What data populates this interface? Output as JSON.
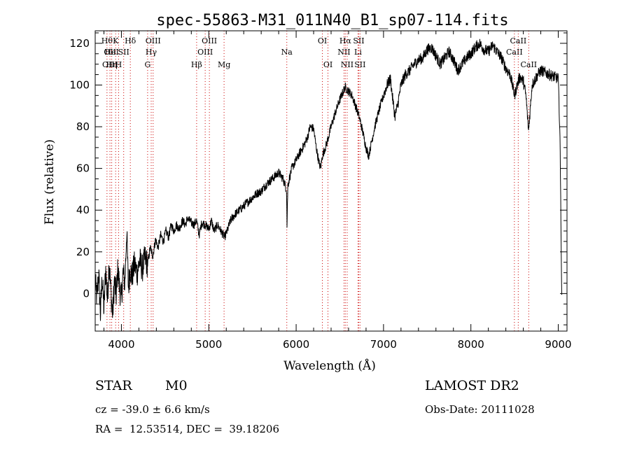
{
  "chart_data": {
    "type": "line",
    "title": "spec-55863-M31_011N40_B1_sp07-114.fits",
    "xlabel": "Wavelength (Å)",
    "ylabel": "Flux (relative)",
    "xlim": [
      3700,
      9100
    ],
    "ylim": [
      -18,
      126
    ],
    "xticks": [
      4000,
      5000,
      6000,
      7000,
      8000,
      9000
    ],
    "yticks": [
      0,
      20,
      40,
      60,
      80,
      100,
      120
    ],
    "grid": false,
    "colors": {
      "spectrum": "#000000",
      "lines": "#cc0000",
      "axes": "#000000"
    },
    "series": [
      {
        "points": [
          [
            3700,
            5
          ],
          [
            3720,
            -2
          ],
          [
            3740,
            10
          ],
          [
            3760,
            -10
          ],
          [
            3780,
            8
          ],
          [
            3800,
            -8
          ],
          [
            3820,
            12
          ],
          [
            3840,
            -3
          ],
          [
            3860,
            16
          ],
          [
            3880,
            0
          ],
          [
            3900,
            -10
          ],
          [
            3920,
            6
          ],
          [
            3940,
            -1
          ],
          [
            3960,
            12
          ],
          [
            3980,
            2
          ],
          [
            4000,
            -2
          ],
          [
            4020,
            10
          ],
          [
            4040,
            5
          ],
          [
            4060,
            30
          ],
          [
            4080,
            3
          ],
          [
            4100,
            12
          ],
          [
            4120,
            8
          ],
          [
            4150,
            14
          ],
          [
            4180,
            10
          ],
          [
            4210,
            16
          ],
          [
            4240,
            12
          ],
          [
            4270,
            17
          ],
          [
            4300,
            14
          ],
          [
            4330,
            22
          ],
          [
            4360,
            18
          ],
          [
            4390,
            26
          ],
          [
            4420,
            22
          ],
          [
            4450,
            28
          ],
          [
            4480,
            25
          ],
          [
            4510,
            30
          ],
          [
            4540,
            27
          ],
          [
            4570,
            33
          ],
          [
            4600,
            30
          ],
          [
            4630,
            33
          ],
          [
            4660,
            31
          ],
          [
            4700,
            35
          ],
          [
            4730,
            33
          ],
          [
            4760,
            36
          ],
          [
            4800,
            34
          ],
          [
            4830,
            33
          ],
          [
            4860,
            35
          ],
          [
            4890,
            28
          ],
          [
            4920,
            34
          ],
          [
            4960,
            33
          ],
          [
            5000,
            31
          ],
          [
            5030,
            35
          ],
          [
            5060,
            30
          ],
          [
            5100,
            33
          ],
          [
            5140,
            30
          ],
          [
            5180,
            27
          ],
          [
            5210,
            30
          ],
          [
            5250,
            35
          ],
          [
            5300,
            38
          ],
          [
            5350,
            40
          ],
          [
            5400,
            42
          ],
          [
            5450,
            44
          ],
          [
            5500,
            46
          ],
          [
            5550,
            48
          ],
          [
            5600,
            49
          ],
          [
            5650,
            52
          ],
          [
            5700,
            54
          ],
          [
            5750,
            56
          ],
          [
            5800,
            58
          ],
          [
            5850,
            55
          ],
          [
            5890,
            50
          ],
          [
            5895,
            32
          ],
          [
            5905,
            52
          ],
          [
            5950,
            60
          ],
          [
            6000,
            64
          ],
          [
            6050,
            68
          ],
          [
            6100,
            72
          ],
          [
            6130,
            75
          ],
          [
            6160,
            80
          ],
          [
            6200,
            79
          ],
          [
            6230,
            70
          ],
          [
            6260,
            63
          ],
          [
            6280,
            60
          ],
          [
            6300,
            66
          ],
          [
            6350,
            72
          ],
          [
            6400,
            80
          ],
          [
            6450,
            87
          ],
          [
            6500,
            93
          ],
          [
            6530,
            96
          ],
          [
            6560,
            99
          ],
          [
            6600,
            97
          ],
          [
            6640,
            95
          ],
          [
            6680,
            90
          ],
          [
            6720,
            85
          ],
          [
            6760,
            78
          ],
          [
            6800,
            70
          ],
          [
            6830,
            66
          ],
          [
            6860,
            72
          ],
          [
            6900,
            80
          ],
          [
            6950,
            88
          ],
          [
            7000,
            95
          ],
          [
            7040,
            100
          ],
          [
            7080,
            103
          ],
          [
            7100,
            95
          ],
          [
            7130,
            85
          ],
          [
            7160,
            90
          ],
          [
            7200,
            100
          ],
          [
            7250,
            105
          ],
          [
            7300,
            107
          ],
          [
            7350,
            110
          ],
          [
            7400,
            112
          ],
          [
            7450,
            113
          ],
          [
            7500,
            117
          ],
          [
            7550,
            118
          ],
          [
            7600,
            114
          ],
          [
            7650,
            110
          ],
          [
            7700,
            113
          ],
          [
            7750,
            116
          ],
          [
            7800,
            112
          ],
          [
            7850,
            107
          ],
          [
            7900,
            110
          ],
          [
            7950,
            113
          ],
          [
            8000,
            115
          ],
          [
            8050,
            118
          ],
          [
            8100,
            120
          ],
          [
            8150,
            117
          ],
          [
            8200,
            116
          ],
          [
            8250,
            119
          ],
          [
            8300,
            116
          ],
          [
            8350,
            113
          ],
          [
            8400,
            108
          ],
          [
            8450,
            105
          ],
          [
            8500,
            95
          ],
          [
            8530,
            100
          ],
          [
            8560,
            104
          ],
          [
            8600,
            102
          ],
          [
            8630,
            95
          ],
          [
            8660,
            78
          ],
          [
            8700,
            100
          ],
          [
            8750,
            104
          ],
          [
            8800,
            107
          ],
          [
            8850,
            106
          ],
          [
            8900,
            105
          ],
          [
            8950,
            104
          ],
          [
            9000,
            103
          ],
          [
            9020,
            75
          ],
          [
            9040,
            -2
          ]
        ]
      }
    ],
    "lines": [
      {
        "wave": 3835,
        "labels": [
          {
            "text": "Hθ",
            "row": 1
          }
        ]
      },
      {
        "wave": 3869,
        "labels": [
          {
            "text": "OII",
            "row": 2
          },
          {
            "text": "OIII",
            "row": 3
          }
        ]
      },
      {
        "wave": 3889,
        "labels": [
          {
            "text": "HeI",
            "row": 2
          },
          {
            "text": "Hη",
            "row": 3
          }
        ]
      },
      {
        "wave": 3934,
        "labels": [
          {
            "text": "K",
            "row": 1
          }
        ]
      },
      {
        "wave": 3968,
        "labels": [
          {
            "text": "H",
            "row": 3
          }
        ]
      },
      {
        "wave": 4026,
        "labels": [
          {
            "text": "SII",
            "row": 2
          }
        ]
      },
      {
        "wave": 4102,
        "labels": [
          {
            "text": "Hδ",
            "row": 1
          }
        ]
      },
      {
        "wave": 4300,
        "labels": [
          {
            "text": "G",
            "row": 3
          }
        ]
      },
      {
        "wave": 4341,
        "labels": [
          {
            "text": "Hγ",
            "row": 2
          }
        ]
      },
      {
        "wave": 4363,
        "labels": [
          {
            "text": "OIII",
            "row": 1
          }
        ]
      },
      {
        "wave": 4861,
        "labels": [
          {
            "text": "Hβ",
            "row": 3
          }
        ]
      },
      {
        "wave": 4959,
        "labels": [
          {
            "text": "OIII",
            "row": 2
          }
        ]
      },
      {
        "wave": 5007,
        "labels": [
          {
            "text": "OIII",
            "row": 1
          }
        ]
      },
      {
        "wave": 5175,
        "labels": [
          {
            "text": "Mg",
            "row": 3
          }
        ]
      },
      {
        "wave": 5893,
        "labels": [
          {
            "text": "Na",
            "row": 2
          }
        ]
      },
      {
        "wave": 6300,
        "labels": [
          {
            "text": "OI",
            "row": 1
          }
        ]
      },
      {
        "wave": 6364,
        "labels": [
          {
            "text": "OI",
            "row": 3
          }
        ]
      },
      {
        "wave": 6548,
        "labels": [
          {
            "text": "NII",
            "row": 2
          }
        ]
      },
      {
        "wave": 6563,
        "labels": [
          {
            "text": "Hα",
            "row": 1
          }
        ]
      },
      {
        "wave": 6584,
        "labels": [
          {
            "text": "NII",
            "row": 3
          }
        ]
      },
      {
        "wave": 6708,
        "labels": [
          {
            "text": "Li",
            "row": 2
          }
        ]
      },
      {
        "wave": 6716,
        "labels": [
          {
            "text": "SII",
            "row": 1
          }
        ]
      },
      {
        "wave": 6731,
        "labels": [
          {
            "text": "SII",
            "row": 3
          }
        ]
      },
      {
        "wave": 8498,
        "labels": [
          {
            "text": "CaII",
            "row": 2
          }
        ]
      },
      {
        "wave": 8542,
        "labels": [
          {
            "text": "CaII",
            "row": 1
          }
        ]
      },
      {
        "wave": 8662,
        "labels": [
          {
            "text": "CaII",
            "row": 3
          }
        ]
      }
    ]
  },
  "info": {
    "object_type": "STAR",
    "subclass": "M0",
    "survey": "LAMOST DR2",
    "redshift": "cz = -39.0 ± 6.6 km/s",
    "obs_date": "Obs-Date: 20111028",
    "coords": "RA =  12.53514, DEC =  39.18206"
  }
}
